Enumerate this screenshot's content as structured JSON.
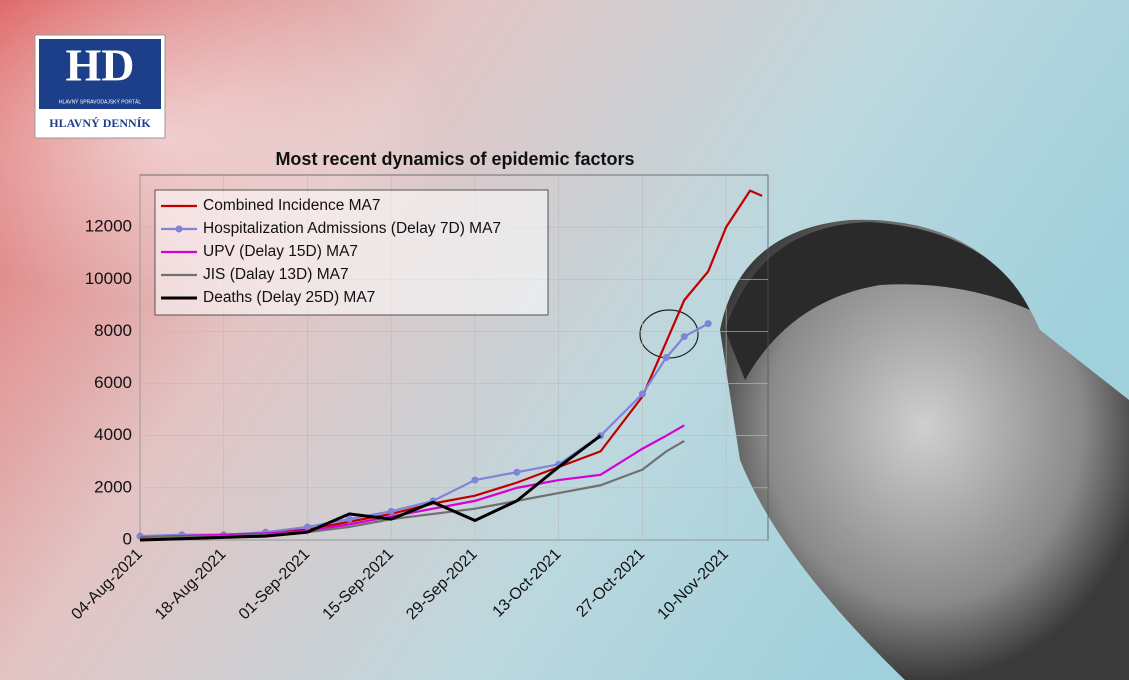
{
  "logo": {
    "mark": "HD",
    "tagline": "HLAVNÝ SPRAVODAJSKÝ PORTÁL",
    "name": "HLAVNÝ DENNÍK"
  },
  "chart_data": {
    "type": "line",
    "title": "Most recent dynamics of epidemic factors",
    "x": [
      "04-Aug-2021",
      "11-Aug-2021",
      "18-Aug-2021",
      "25-Aug-2021",
      "01-Sep-2021",
      "08-Sep-2021",
      "15-Sep-2021",
      "22-Sep-2021",
      "29-Sep-2021",
      "06-Oct-2021",
      "13-Oct-2021",
      "20-Oct-2021",
      "27-Oct-2021",
      "31-Oct-2021",
      "03-Nov-2021",
      "07-Nov-2021",
      "10-Nov-2021",
      "14-Nov-2021",
      "16-Nov-2021"
    ],
    "xlim": [
      "04-Aug-2021",
      "17-Nov-2021"
    ],
    "xticks": [
      "04-Aug-2021",
      "18-Aug-2021",
      "01-Sep-2021",
      "15-Sep-2021",
      "29-Sep-2021",
      "13-Oct-2021",
      "27-Oct-2021",
      "10-Nov-2021"
    ],
    "ylim": [
      0,
      14000
    ],
    "yticks": [
      0,
      2000,
      4000,
      6000,
      8000,
      10000,
      12000
    ],
    "grid": true,
    "legend": "upper left",
    "series": [
      {
        "name": "Combined Incidence MA7",
        "color": "#c00000",
        "values": [
          100,
          150,
          200,
          280,
          400,
          700,
          1000,
          1400,
          1700,
          2200,
          2800,
          3400,
          5500,
          7600,
          9200,
          10300,
          12000,
          13400,
          13200
        ]
      },
      {
        "name": "Hospitalization Admissions (Delay 7D) MA7",
        "color": "#7f84d8",
        "marker": true,
        "values": [
          150,
          200,
          200,
          300,
          500,
          800,
          1100,
          1500,
          2300,
          2600,
          2900,
          4000,
          5600,
          7000,
          7800,
          8300,
          null,
          null,
          null
        ]
      },
      {
        "name": "UPV (Delay 15D) MA7",
        "color": "#d400d4",
        "values": [
          100,
          150,
          200,
          250,
          350,
          600,
          900,
          1200,
          1500,
          2000,
          2300,
          2500,
          3500,
          4000,
          4400,
          null,
          null,
          null,
          null
        ]
      },
      {
        "name": "JIS (Dalay 13D) MA7",
        "color": "#707070",
        "values": [
          100,
          120,
          150,
          200,
          300,
          500,
          800,
          1000,
          1200,
          1500,
          1800,
          2100,
          2700,
          3400,
          3800,
          null,
          null,
          null,
          null
        ]
      },
      {
        "name": "Deaths (Delay 25D) MA7",
        "color": "#000000",
        "values": [
          0,
          50,
          100,
          150,
          300,
          1000,
          800,
          1450,
          750,
          1500,
          2800,
          4000,
          null,
          null,
          null,
          null,
          null,
          null,
          null
        ]
      }
    ]
  }
}
